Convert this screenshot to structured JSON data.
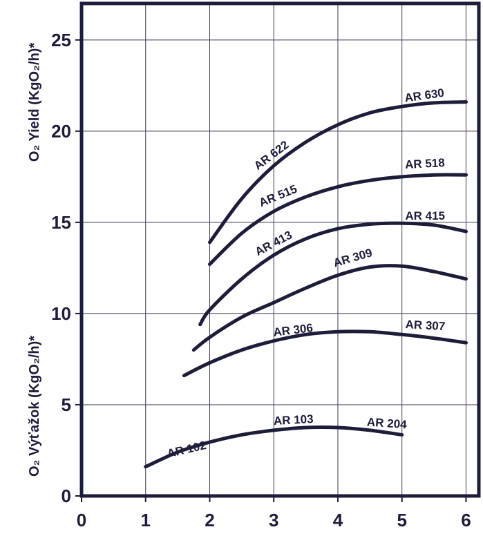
{
  "chart_data": {
    "type": "line",
    "xlabel": "",
    "ylabel_top": "O₂ Yield   (KgO₂/h)*",
    "ylabel_bottom": "O₂ Výťažok (KgO₂/h)*",
    "xlim": [
      0,
      6.2
    ],
    "ylim": [
      0,
      27
    ],
    "x_ticks": [
      "0",
      "1",
      "2",
      "3",
      "4",
      "5",
      "6"
    ],
    "y_ticks": [
      "0",
      "5",
      "10",
      "15",
      "20",
      "25"
    ],
    "grid": true,
    "series": [
      {
        "labels": [
          "AR 102",
          "AR 103",
          "AR 204"
        ],
        "points": [
          [
            1.0,
            1.6
          ],
          [
            1.5,
            2.4
          ],
          [
            2.0,
            2.95
          ],
          [
            2.5,
            3.35
          ],
          [
            3.0,
            3.6
          ],
          [
            3.5,
            3.75
          ],
          [
            4.0,
            3.75
          ],
          [
            4.5,
            3.6
          ],
          [
            5.0,
            3.35
          ]
        ]
      },
      {
        "labels": [
          "AR 306",
          "AR 307"
        ],
        "points": [
          [
            1.6,
            6.6
          ],
          [
            2.0,
            7.3
          ],
          [
            2.5,
            8.0
          ],
          [
            3.0,
            8.5
          ],
          [
            3.5,
            8.85
          ],
          [
            4.0,
            9.0
          ],
          [
            4.5,
            9.0
          ],
          [
            5.0,
            8.85
          ],
          [
            5.5,
            8.65
          ],
          [
            6.0,
            8.4
          ]
        ]
      },
      {
        "labels": [
          "AR 309"
        ],
        "points": [
          [
            1.75,
            8.0
          ],
          [
            2.0,
            8.7
          ],
          [
            2.5,
            9.8
          ],
          [
            3.0,
            10.6
          ],
          [
            3.5,
            11.4
          ],
          [
            4.0,
            12.1
          ],
          [
            4.5,
            12.55
          ],
          [
            5.0,
            12.6
          ],
          [
            5.5,
            12.3
          ],
          [
            6.0,
            11.9
          ]
        ]
      },
      {
        "labels": [
          "AR 413",
          "AR 415"
        ],
        "points": [
          [
            1.85,
            9.4
          ],
          [
            2.0,
            10.2
          ],
          [
            2.5,
            11.9
          ],
          [
            3.0,
            13.2
          ],
          [
            3.5,
            14.1
          ],
          [
            4.0,
            14.65
          ],
          [
            4.5,
            14.9
          ],
          [
            5.0,
            14.95
          ],
          [
            5.5,
            14.85
          ],
          [
            6.0,
            14.5
          ]
        ]
      },
      {
        "labels": [
          "AR 515",
          "AR 518"
        ],
        "points": [
          [
            2.0,
            12.7
          ],
          [
            2.5,
            14.4
          ],
          [
            3.0,
            15.6
          ],
          [
            3.5,
            16.4
          ],
          [
            4.0,
            16.95
          ],
          [
            4.5,
            17.3
          ],
          [
            5.0,
            17.5
          ],
          [
            5.5,
            17.6
          ],
          [
            6.0,
            17.6
          ]
        ]
      },
      {
        "labels": [
          "AR 622",
          "AR 630"
        ],
        "points": [
          [
            2.0,
            13.9
          ],
          [
            2.5,
            16.3
          ],
          [
            3.0,
            18.1
          ],
          [
            3.5,
            19.4
          ],
          [
            4.0,
            20.35
          ],
          [
            4.5,
            21.0
          ],
          [
            5.0,
            21.35
          ],
          [
            5.5,
            21.55
          ],
          [
            6.0,
            21.6
          ]
        ]
      }
    ],
    "curve_labels": [
      {
        "text": "AR 102",
        "x": 1.35,
        "y": 2.1,
        "angle": -13
      },
      {
        "text": "AR 103",
        "x": 3.0,
        "y": 3.9,
        "angle": -3
      },
      {
        "text": "AR 204",
        "x": 4.45,
        "y": 3.85,
        "angle": 4
      },
      {
        "text": "AR 306",
        "x": 3.0,
        "y": 8.75,
        "angle": -7
      },
      {
        "text": "AR 307",
        "x": 5.05,
        "y": 9.2,
        "angle": 3
      },
      {
        "text": "AR 309",
        "x": 3.95,
        "y": 12.55,
        "angle": -16
      },
      {
        "text": "AR 413",
        "x": 2.75,
        "y": 13.15,
        "angle": -28
      },
      {
        "text": "AR 415",
        "x": 5.05,
        "y": 15.15,
        "angle": 0
      },
      {
        "text": "AR 515",
        "x": 2.8,
        "y": 15.85,
        "angle": -22
      },
      {
        "text": "AR 518",
        "x": 5.05,
        "y": 17.95,
        "angle": -3
      },
      {
        "text": "AR 622",
        "x": 2.75,
        "y": 17.85,
        "angle": -37
      },
      {
        "text": "AR 630",
        "x": 5.05,
        "y": 21.6,
        "angle": -8
      }
    ],
    "colors": {
      "curve": "#1d1d3a",
      "grid": "#3a3a55",
      "text": "#1d1d3a",
      "axis": "#1d1d3a"
    }
  }
}
